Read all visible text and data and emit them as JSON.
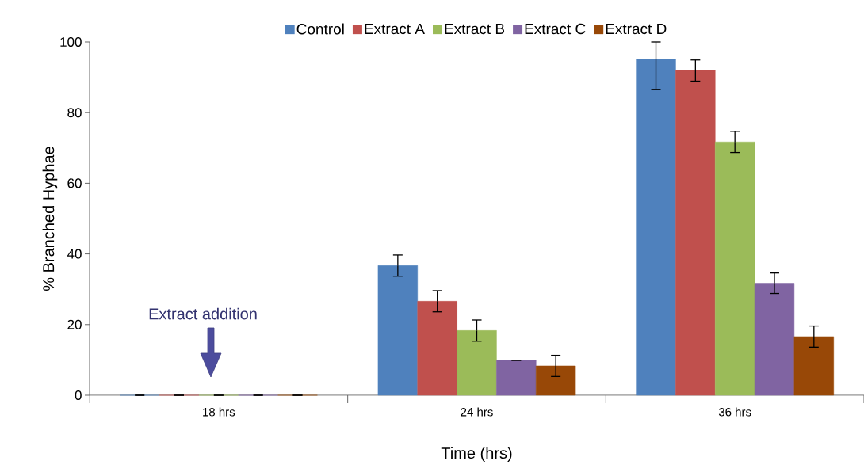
{
  "chart_data": {
    "type": "bar",
    "xlabel": "Time (hrs)",
    "ylabel": "% Branched Hyphae",
    "categories": [
      "18 hrs",
      "24 hrs",
      "36 hrs"
    ],
    "series": [
      {
        "name": "Control",
        "color": "#4f81bd",
        "values": [
          0,
          36.7,
          95.1
        ],
        "errors": [
          0,
          3,
          [
            86.5,
            100
          ]
        ]
      },
      {
        "name": "Extract A",
        "color": "#c0504d",
        "values": [
          0,
          26.6,
          91.9
        ],
        "errors": [
          0,
          3,
          3
        ]
      },
      {
        "name": "Extract B",
        "color": "#9bbb59",
        "values": [
          0,
          18.3,
          71.7
        ],
        "errors": [
          0,
          3,
          3
        ]
      },
      {
        "name": "Extract C",
        "color": "#8064a2",
        "values": [
          0,
          9.9,
          31.7
        ],
        "errors": [
          0,
          0,
          2.9
        ]
      },
      {
        "name": "Extract D",
        "color": "#984807",
        "values": [
          0,
          8.3,
          16.6
        ],
        "errors": [
          0,
          3,
          3
        ]
      }
    ],
    "ylim": [
      0,
      100
    ],
    "yticks": [
      0,
      20,
      40,
      60,
      80,
      100
    ],
    "legend": "top",
    "grid": false,
    "annotations": [
      "Extract addition"
    ]
  }
}
